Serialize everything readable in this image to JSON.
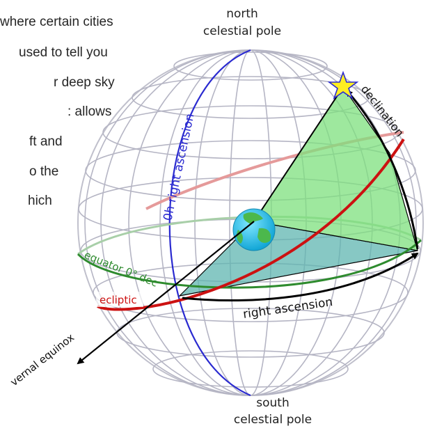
{
  "paragraph_lines": [
    "where certain cities",
    "used to tell you",
    "r deep sky",
    ": allows",
    "ft and",
    "o the",
    "hich"
  ],
  "labels": {
    "north_pole_line1": "north",
    "north_pole_line2": "celestial pole",
    "south_pole_line1": "south",
    "south_pole_line2": "celestial pole",
    "right_ascension_0h": "0h right ascension",
    "declination": "declination",
    "equator": "equator 0° dec",
    "ecliptic": "ecliptic",
    "right_ascension": "right ascension",
    "vernal_equinox": "vernal equinox"
  },
  "colors": {
    "grid": "#b5b5c4",
    "ra_zero_meridian": "#2a2ad0",
    "equator": "#2e8b2e",
    "ecliptic": "#cc1111",
    "declination_wedge": "#7ee07e",
    "ra_wedge": "#5fb6b0",
    "star": "#ffee22",
    "earth_ocean": "#22c0e8",
    "earth_land": "#4cb84c"
  }
}
